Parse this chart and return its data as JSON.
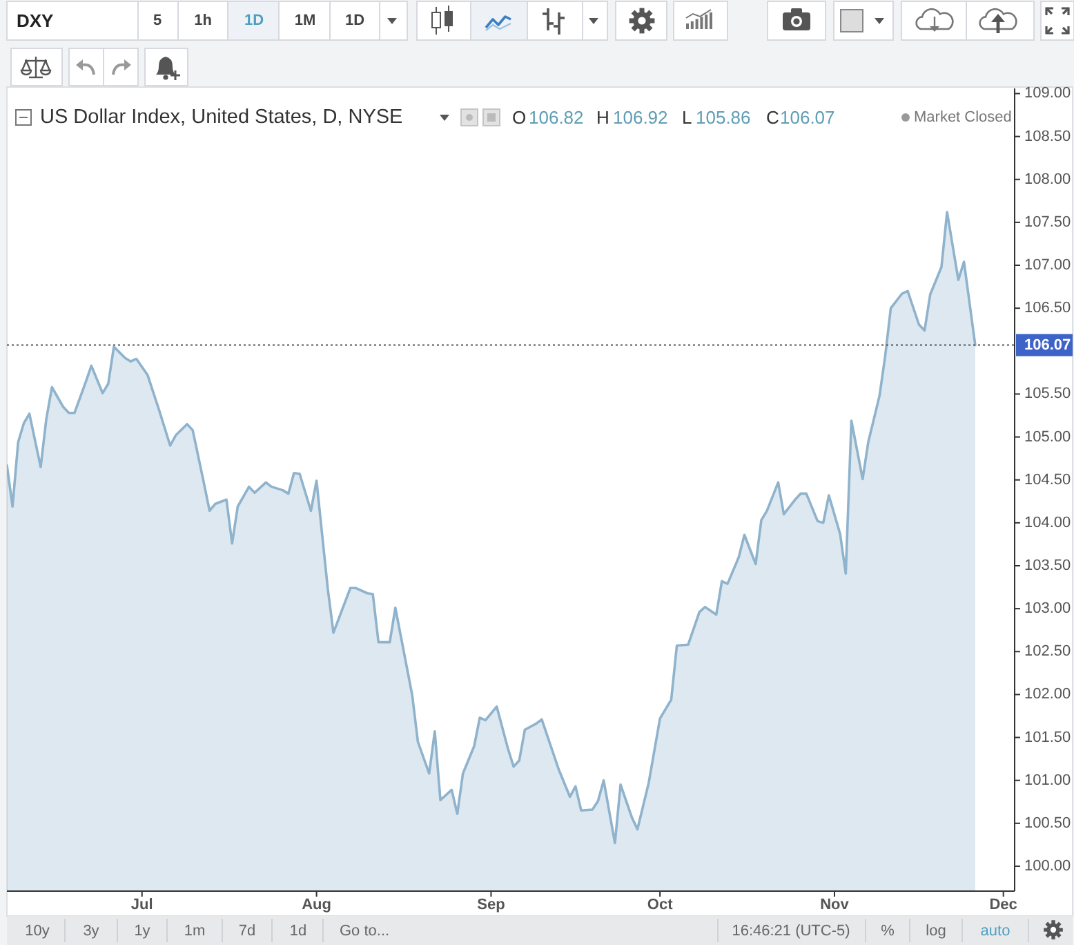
{
  "chart_data": {
    "type": "area",
    "title": "US Dollar Index, United States, D, NYSE",
    "annotations": [
      "DXY",
      "5",
      "1h",
      "1D",
      "1M",
      "1D",
      "O",
      "106.82",
      "H",
      "106.92",
      "L",
      "105.86",
      "C",
      "106.07",
      "Market Closed",
      "10y",
      "3y",
      "1y",
      "1m",
      "7d",
      "1d",
      "Go to...",
      "16:46:21 (UTC-5)",
      "%",
      "log",
      "auto"
    ],
    "x": [
      "--06-07",
      "--06-08",
      "--06-09",
      "--06-10",
      "--06-11",
      "--06-13",
      "--06-14",
      "--06-15",
      "--06-17",
      "--06-18",
      "--06-19",
      "--06-21",
      "--06-22",
      "--06-24",
      "--06-25",
      "--06-26",
      "--06-28",
      "--06-29",
      "--06-30",
      "--07-02",
      "--07-04",
      "--07-06",
      "--07-07",
      "--07-09",
      "--07-10",
      "--07-12",
      "--07-13",
      "--07-14",
      "--07-16",
      "--07-17",
      "--07-18",
      "--07-20",
      "--07-21",
      "--07-23",
      "--07-24",
      "--07-26",
      "--07-27",
      "--07-28",
      "--07-29",
      "--07-31",
      "--08-01",
      "--08-03",
      "--08-04",
      "--08-07",
      "--08-08",
      "--08-10",
      "--08-11",
      "--08-12",
      "--08-14",
      "--08-15",
      "--08-18",
      "--08-19",
      "--08-21",
      "--08-22",
      "--08-23",
      "--08-25",
      "--08-26",
      "--08-27",
      "--08-29",
      "--08-30",
      "--08-31",
      "--09-02",
      "--09-04",
      "--09-05",
      "--09-06",
      "--09-07",
      "--09-09",
      "--09-10",
      "--09-13",
      "--09-15",
      "--09-16",
      "--09-17",
      "--09-19",
      "--09-20",
      "--09-21",
      "--09-23",
      "--09-24",
      "--09-26",
      "--09-27",
      "--09-29",
      "--10-01",
      "--10-03",
      "--10-04",
      "--10-06",
      "--10-08",
      "--10-09",
      "--10-11",
      "--10-12",
      "--10-13",
      "--10-15",
      "--10-16",
      "--10-18",
      "--10-19",
      "--10-20",
      "--10-22",
      "--10-23",
      "--10-25",
      "--10-26",
      "--10-27",
      "--10-29",
      "--10-30",
      "--10-31",
      "--11-02",
      "--11-03",
      "--11-04",
      "--11-06",
      "--11-07",
      "--11-09",
      "--11-10",
      "--11-11",
      "--11-13",
      "--11-14",
      "--11-16",
      "--11-17",
      "--11-18",
      "--11-20",
      "--11-21",
      "--11-23",
      "--11-24",
      "--11-26"
    ],
    "series": [
      {
        "color": "#8fb3cc",
        "values": [
          104.67,
          104.19,
          104.94,
          105.16,
          105.27,
          104.65,
          105.21,
          105.58,
          105.35,
          105.28,
          105.28,
          105.64,
          105.83,
          105.51,
          105.62,
          106.05,
          105.92,
          105.88,
          105.91,
          105.72,
          105.32,
          104.9,
          105.02,
          105.15,
          105.08,
          104.46,
          104.14,
          104.22,
          104.27,
          103.76,
          104.19,
          104.42,
          104.35,
          104.47,
          104.42,
          104.38,
          104.34,
          104.58,
          104.57,
          104.14,
          104.49,
          103.23,
          102.72,
          103.24,
          103.24,
          103.18,
          103.17,
          102.61,
          102.61,
          103.01,
          101.99,
          101.45,
          101.08,
          101.57,
          100.77,
          100.89,
          100.61,
          101.08,
          101.4,
          101.73,
          101.7,
          101.86,
          101.37,
          101.16,
          101.23,
          101.59,
          101.66,
          101.71,
          101.13,
          100.81,
          100.93,
          100.65,
          100.66,
          100.76,
          101.0,
          100.27,
          100.95,
          100.57,
          100.43,
          100.97,
          101.72,
          101.94,
          102.57,
          102.58,
          102.96,
          103.02,
          102.93,
          103.32,
          103.29,
          103.6,
          103.86,
          103.52,
          104.03,
          104.14,
          104.47,
          104.1,
          104.27,
          104.34,
          104.34,
          104.02,
          104.0,
          104.32,
          103.87,
          103.41,
          105.19,
          104.51,
          104.94,
          105.48,
          105.94,
          106.5,
          106.67,
          106.7,
          106.31,
          106.24,
          106.66,
          106.98,
          107.62,
          106.83,
          107.04,
          106.07
        ]
      }
    ],
    "xlim": [
      "--06-07",
      "--12-03"
    ],
    "xticks": [
      {
        "value": "--07-01",
        "label": "Jul"
      },
      {
        "value": "--08-01",
        "label": "Aug"
      },
      {
        "value": "--09-01",
        "label": "Sep"
      },
      {
        "value": "--10-01",
        "label": "Oct"
      },
      {
        "value": "--11-01",
        "label": "Nov"
      },
      {
        "value": "--12-01",
        "label": "Dec"
      }
    ],
    "ylim": [
      99.71,
      109.06
    ],
    "yticks": [
      {
        "value": 100,
        "label": "100.00"
      },
      {
        "value": 100.5,
        "label": "100.50"
      },
      {
        "value": 101,
        "label": "101.00"
      },
      {
        "value": 101.5,
        "label": "101.50"
      },
      {
        "value": 102,
        "label": "102.00"
      },
      {
        "value": 102.5,
        "label": "102.50"
      },
      {
        "value": 103,
        "label": "103.00"
      },
      {
        "value": 103.5,
        "label": "103.50"
      },
      {
        "value": 104,
        "label": "104.00"
      },
      {
        "value": 104.5,
        "label": "104.50"
      },
      {
        "value": 105,
        "label": "105.00"
      },
      {
        "value": 105.5,
        "label": "105.50"
      },
      {
        "value": 106.5,
        "label": "106.50"
      },
      {
        "value": 107,
        "label": "107.00"
      },
      {
        "value": 107.5,
        "label": "107.50"
      },
      {
        "value": 108,
        "label": "108.00"
      },
      {
        "value": 108.5,
        "label": "108.50"
      },
      {
        "value": 109,
        "label": "109.00"
      }
    ],
    "ref_lines": [
      {
        "axis": "y",
        "value": 106.07,
        "label": "106.07",
        "color": "#555555",
        "line_style": "dotted"
      }
    ]
  }
}
